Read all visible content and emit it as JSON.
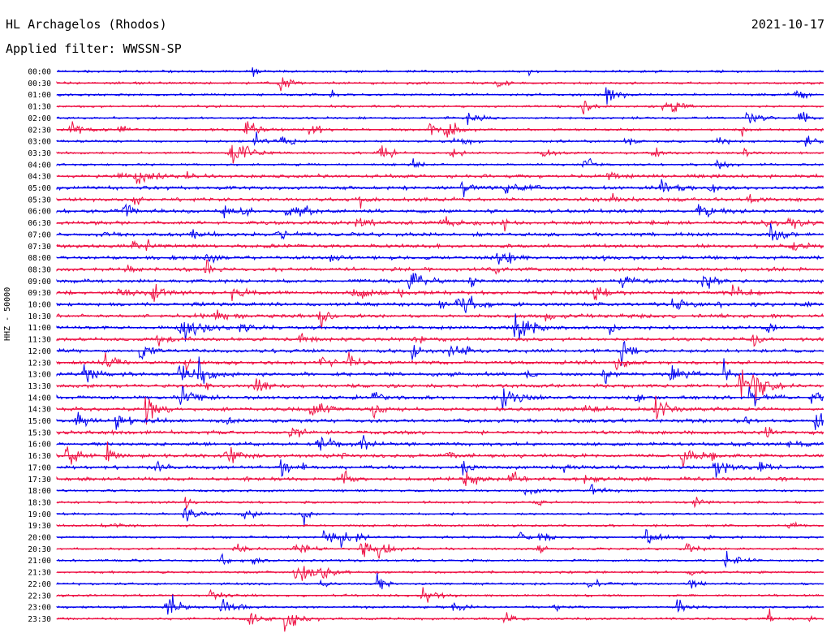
{
  "header": {
    "station": "HL Archagelos (Rhodos)",
    "date": "2021-10-17",
    "filter": "Applied filter: WWSSN-SP"
  },
  "chart_data": {
    "type": "line",
    "title": "HL Archagelos (Rhodos)",
    "subtitle": "Applied filter: WWSSN-SP",
    "ylabel": "HHZ - 50000",
    "rows": [
      "00:00",
      "00:30",
      "01:00",
      "01:30",
      "02:00",
      "02:30",
      "03:00",
      "03:30",
      "04:00",
      "04:30",
      "05:00",
      "05:30",
      "06:00",
      "06:30",
      "07:00",
      "07:30",
      "08:00",
      "08:30",
      "09:00",
      "09:30",
      "10:00",
      "10:30",
      "11:00",
      "11:30",
      "12:00",
      "12:30",
      "13:00",
      "13:30",
      "14:00",
      "14:30",
      "15:00",
      "15:30",
      "16:00",
      "16:30",
      "17:00",
      "17:30",
      "18:00",
      "18:30",
      "19:00",
      "19:30",
      "20:00",
      "20:30",
      "21:00",
      "21:30",
      "22:00",
      "22:30",
      "23:00",
      "23:30"
    ],
    "series_colors": [
      "#0000ee",
      "#ee1144"
    ],
    "grid": false,
    "legend": "none"
  }
}
